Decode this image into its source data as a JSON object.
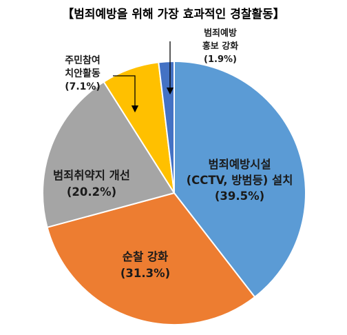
{
  "chart_data": {
    "type": "pie",
    "title": "【범죄예방을 위해 가장 효과적인 경찰활동】",
    "slices": [
      {
        "label": "범죄예방시설 (CCTV, 방범등) 설치",
        "label_lines": [
          "범죄예방시설",
          "(CCTV, 방범등) 설치"
        ],
        "value": 39.5,
        "value_text": "(39.5%)",
        "color": "#5B9BD5"
      },
      {
        "label": "순찰 강화",
        "label_lines": [
          "순찰 강화"
        ],
        "value": 31.3,
        "value_text": "(31.3%)",
        "color": "#ED7D31"
      },
      {
        "label": "범죄취약지 개선",
        "label_lines": [
          "범죄취약지 개선"
        ],
        "value": 20.2,
        "value_text": "(20.2%)",
        "color": "#A5A5A5"
      },
      {
        "label": "주민참여 치안활동",
        "label_lines": [
          "주민참여",
          "치안활동"
        ],
        "value": 7.1,
        "value_text": "(7.1%)",
        "color": "#FFC000"
      },
      {
        "label": "범죄예방 홍보 강화",
        "label_lines": [
          "범죄예방",
          "홍보 강화"
        ],
        "value": 1.9,
        "value_text": "(1.9%)",
        "color": "#4472C4"
      }
    ],
    "start_angle": "12 o'clock",
    "direction": "clockwise"
  }
}
